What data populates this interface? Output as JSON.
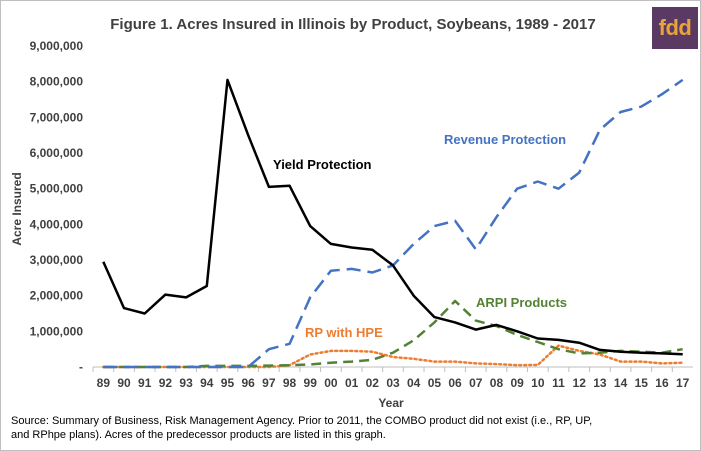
{
  "logo_text": "fdd",
  "colors": {
    "yield_protection": "#000000",
    "revenue_protection": "#4472c4",
    "arpi_products": "#548235",
    "rp_with_hpe": "#ed7d31",
    "logo_background": "#5a3a63",
    "logo_text": "#e8a33c"
  },
  "source_note": "Source:  Summary of Business, Risk Management Agency.  Prior to 2011, the COMBO product did not exist (i.e., RP, UP, and RPhpe plans). Acres of the predecessor products are listed in this graph.",
  "chart_data": {
    "type": "line",
    "title": "Figure 1. Acres Insured in Illinois by Product, Soybeans, 1989 - 2017",
    "xlabel": "Year",
    "ylabel": "Acre Insured",
    "ylim": [
      0,
      9000000
    ],
    "grid": false,
    "legend": "labels placed next to each line",
    "categories": [
      "89",
      "90",
      "91",
      "92",
      "93",
      "94",
      "95",
      "96",
      "97",
      "98",
      "99",
      "00",
      "01",
      "02",
      "03",
      "04",
      "05",
      "06",
      "07",
      "08",
      "09",
      "10",
      "11",
      "12",
      "13",
      "14",
      "15",
      "16",
      "17"
    ],
    "y_ticks": [
      "-",
      "1,000,000",
      "2,000,000",
      "3,000,000",
      "4,000,000",
      "5,000,000",
      "6,000,000",
      "7,000,000",
      "8,000,000",
      "9,000,000"
    ],
    "series": [
      {
        "name": "Yield Protection",
        "style": "solid",
        "values": [
          2950000,
          1650000,
          1500000,
          2030000,
          1950000,
          2270000,
          8050000,
          6500000,
          5050000,
          5080000,
          3950000,
          3450000,
          3350000,
          3290000,
          2850000,
          2000000,
          1400000,
          1250000,
          1050000,
          1180000,
          1000000,
          800000,
          760000,
          680000,
          480000,
          430000,
          400000,
          380000,
          360000
        ]
      },
      {
        "name": "Revenue Protection",
        "style": "dash",
        "values": [
          0,
          0,
          0,
          0,
          0,
          0,
          0,
          0,
          500000,
          650000,
          1950000,
          2700000,
          2750000,
          2650000,
          2850000,
          3450000,
          3950000,
          4100000,
          3300000,
          4200000,
          5000000,
          5200000,
          5000000,
          5450000,
          6650000,
          7150000,
          7300000,
          7650000,
          8050000
        ]
      },
      {
        "name": "ARPI Products",
        "style": "dash",
        "values": [
          0,
          0,
          0,
          0,
          0,
          30000,
          30000,
          30000,
          40000,
          50000,
          70000,
          120000,
          150000,
          200000,
          400000,
          750000,
          1250000,
          1850000,
          1300000,
          1150000,
          900000,
          700000,
          500000,
          380000,
          400000,
          450000,
          430000,
          400000,
          500000
        ]
      },
      {
        "name": "RP with HPE",
        "style": "dot",
        "values": [
          0,
          0,
          0,
          0,
          0,
          0,
          0,
          0,
          0,
          50000,
          350000,
          450000,
          450000,
          430000,
          280000,
          230000,
          150000,
          150000,
          100000,
          80000,
          50000,
          60000,
          600000,
          450000,
          350000,
          150000,
          150000,
          100000,
          120000
        ]
      }
    ]
  }
}
